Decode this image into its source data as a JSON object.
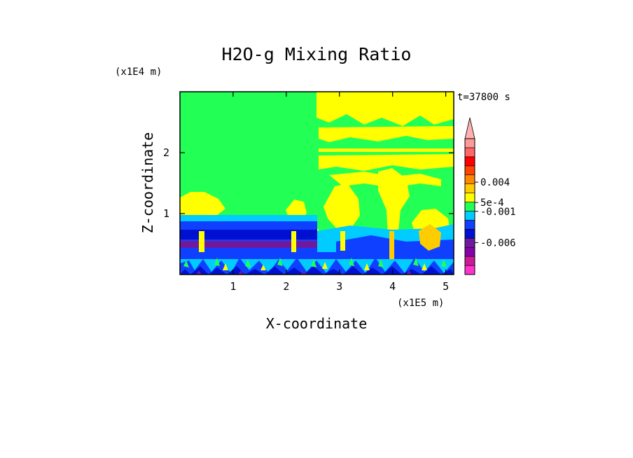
{
  "chart_data": {
    "type": "heatmap",
    "title": "H2O-g Mixing Ratio",
    "xlabel": "X-coordinate",
    "ylabel": "Z-coordinate",
    "x_unit": "(x1E5 m)",
    "y_unit": "(x1E4 m)",
    "time_label": "t=37800 s",
    "xlim": [
      0,
      5.15
    ],
    "ylim": [
      0,
      3.0
    ],
    "x_ticks": [
      1,
      2,
      3,
      4,
      5
    ],
    "x_tick_labels": [
      "1",
      "2",
      "3",
      "4",
      "5"
    ],
    "y_ticks": [
      1,
      2
    ],
    "y_tick_labels": [
      "1",
      "2"
    ],
    "colorbar": {
      "colors": [
        "#ff33cc",
        "#cc1a99",
        "#8800aa",
        "#6f1a9e",
        "#0010d0",
        "#1040ff",
        "#00ccff",
        "#22ff55",
        "#ffff00",
        "#ffcc00",
        "#ff8800",
        "#ff4400",
        "#ff0000",
        "#ff6666",
        "#ff9999"
      ],
      "tick_labels": [
        {
          "label": "0.004",
          "position": 0.68
        },
        {
          "label": "5e-4",
          "position": 0.53
        },
        {
          "label": "-0.001",
          "position": 0.465
        },
        {
          "label": "-0.006",
          "position": 0.235
        }
      ],
      "extend": "max"
    }
  }
}
